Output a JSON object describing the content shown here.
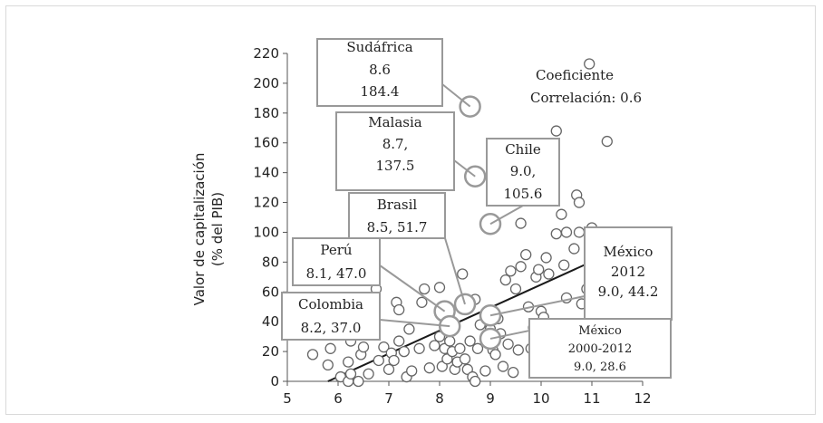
{
  "chart_data": {
    "type": "scatter",
    "ylabel_line1": "Valor de capitalización",
    "ylabel_line2": "(% del PIB)",
    "xlim": [
      5,
      12
    ],
    "ylim": [
      0,
      220
    ],
    "x_ticks": [
      "5",
      "6",
      "7",
      "8",
      "9",
      "10",
      "11",
      "12"
    ],
    "y_ticks": [
      "0",
      "20",
      "40",
      "60",
      "80",
      "100",
      "120",
      "140",
      "160",
      "180",
      "200",
      "220"
    ],
    "trendline": {
      "x": [
        5.8,
        11.3
      ],
      "y": [
        0,
        85
      ]
    },
    "correlation": {
      "line1": "Coeficiente",
      "line2": "Correlación: 0.6"
    },
    "points": [
      {
        "x": 5.5,
        "y": 18
      },
      {
        "x": 5.8,
        "y": 11
      },
      {
        "x": 5.85,
        "y": 22
      },
      {
        "x": 6.05,
        "y": 3
      },
      {
        "x": 6.2,
        "y": 0
      },
      {
        "x": 6.2,
        "y": 13
      },
      {
        "x": 6.25,
        "y": 5
      },
      {
        "x": 6.25,
        "y": 27
      },
      {
        "x": 6.4,
        "y": 0
      },
      {
        "x": 6.45,
        "y": 18
      },
      {
        "x": 6.5,
        "y": 23
      },
      {
        "x": 6.6,
        "y": 5
      },
      {
        "x": 6.7,
        "y": 55
      },
      {
        "x": 6.75,
        "y": 62
      },
      {
        "x": 6.8,
        "y": 14
      },
      {
        "x": 6.9,
        "y": 23
      },
      {
        "x": 7.0,
        "y": 8
      },
      {
        "x": 7.05,
        "y": 19
      },
      {
        "x": 7.1,
        "y": 14
      },
      {
        "x": 7.15,
        "y": 53
      },
      {
        "x": 7.2,
        "y": 48
      },
      {
        "x": 7.2,
        "y": 27
      },
      {
        "x": 7.3,
        "y": 20
      },
      {
        "x": 7.35,
        "y": 3
      },
      {
        "x": 7.45,
        "y": 7
      },
      {
        "x": 7.6,
        "y": 22
      },
      {
        "x": 7.65,
        "y": 53
      },
      {
        "x": 7.7,
        "y": 62
      },
      {
        "x": 7.8,
        "y": 9
      },
      {
        "x": 7.9,
        "y": 24
      },
      {
        "x": 8.0,
        "y": 63
      },
      {
        "x": 8.05,
        "y": 10
      },
      {
        "x": 8.1,
        "y": 22
      },
      {
        "x": 8.15,
        "y": 15
      },
      {
        "x": 8.2,
        "y": 27
      },
      {
        "x": 8.25,
        "y": 20
      },
      {
        "x": 8.3,
        "y": 8
      },
      {
        "x": 8.35,
        "y": 13
      },
      {
        "x": 8.4,
        "y": 22
      },
      {
        "x": 8.45,
        "y": 72
      },
      {
        "x": 8.5,
        "y": 15
      },
      {
        "x": 8.55,
        "y": 8
      },
      {
        "x": 8.6,
        "y": 27
      },
      {
        "x": 8.65,
        "y": 3
      },
      {
        "x": 8.7,
        "y": 0
      },
      {
        "x": 8.7,
        "y": 55
      },
      {
        "x": 8.75,
        "y": 22
      },
      {
        "x": 8.8,
        "y": 38
      },
      {
        "x": 8.9,
        "y": 7
      },
      {
        "x": 9.0,
        "y": 35
      },
      {
        "x": 9.05,
        "y": 21
      },
      {
        "x": 9.1,
        "y": 18
      },
      {
        "x": 9.15,
        "y": 42
      },
      {
        "x": 9.2,
        "y": 32
      },
      {
        "x": 9.3,
        "y": 68
      },
      {
        "x": 9.35,
        "y": 25
      },
      {
        "x": 9.4,
        "y": 74
      },
      {
        "x": 9.45,
        "y": 6
      },
      {
        "x": 9.5,
        "y": 62
      },
      {
        "x": 9.55,
        "y": 21
      },
      {
        "x": 9.6,
        "y": 106
      },
      {
        "x": 9.6,
        "y": 77
      },
      {
        "x": 9.7,
        "y": 85
      },
      {
        "x": 9.75,
        "y": 50
      },
      {
        "x": 9.8,
        "y": 22
      },
      {
        "x": 9.85,
        "y": 36
      },
      {
        "x": 9.9,
        "y": 70
      },
      {
        "x": 9.95,
        "y": 75
      },
      {
        "x": 10.0,
        "y": 47
      },
      {
        "x": 10.05,
        "y": 43
      },
      {
        "x": 10.1,
        "y": 83
      },
      {
        "x": 10.15,
        "y": 72
      },
      {
        "x": 10.2,
        "y": 30
      },
      {
        "x": 10.25,
        "y": 38
      },
      {
        "x": 10.3,
        "y": 99
      },
      {
        "x": 10.3,
        "y": 168
      },
      {
        "x": 10.35,
        "y": 37
      },
      {
        "x": 10.4,
        "y": 112
      },
      {
        "x": 10.45,
        "y": 78
      },
      {
        "x": 10.5,
        "y": 56
      },
      {
        "x": 10.5,
        "y": 100
      },
      {
        "x": 10.55,
        "y": 29
      },
      {
        "x": 10.6,
        "y": 25
      },
      {
        "x": 10.65,
        "y": 89
      },
      {
        "x": 10.7,
        "y": 125
      },
      {
        "x": 10.75,
        "y": 100
      },
      {
        "x": 10.75,
        "y": 120
      },
      {
        "x": 10.9,
        "y": 62
      },
      {
        "x": 10.95,
        "y": 213
      },
      {
        "x": 11.0,
        "y": 103
      },
      {
        "x": 11.0,
        "y": 79
      },
      {
        "x": 11.1,
        "y": 57
      },
      {
        "x": 11.2,
        "y": 43
      },
      {
        "x": 11.3,
        "y": 161
      },
      {
        "x": 6.6,
        "y": 33
      },
      {
        "x": 7.4,
        "y": 35
      },
      {
        "x": 8.0,
        "y": 30
      },
      {
        "x": 9.25,
        "y": 10
      },
      {
        "x": 10.8,
        "y": 52
      }
    ],
    "highlights": [
      {
        "name": "Sudáfrica",
        "x": 8.6,
        "y": 184.4,
        "label_lines": [
          "Sudáfrica",
          "8.6",
          "184.4"
        ]
      },
      {
        "name": "Malasia",
        "x": 8.7,
        "y": 137.5,
        "label_lines": [
          "Malasia",
          "8.7,",
          "137.5"
        ]
      },
      {
        "name": "Chile",
        "x": 9.0,
        "y": 105.6,
        "label_lines": [
          "Chile",
          "9.0,",
          "105.6"
        ]
      },
      {
        "name": "Brasil",
        "x": 8.5,
        "y": 51.7,
        "label_lines": [
          "Brasil",
          "8.5, 51.7"
        ]
      },
      {
        "name": "Perú",
        "x": 8.1,
        "y": 47.0,
        "label_lines": [
          "Perú",
          "8.1, 47.0"
        ]
      },
      {
        "name": "Colombia",
        "x": 8.2,
        "y": 37.0,
        "label_lines": [
          "Colombia",
          "8.2, 37.0"
        ]
      },
      {
        "name": "México 2012",
        "x": 9.0,
        "y": 44.2,
        "label_lines": [
          "México",
          "2012",
          "9.0, 44.2"
        ]
      },
      {
        "name": "México 2000-2012",
        "x": 9.0,
        "y": 28.6,
        "label_lines": [
          "México",
          "2000-2012",
          "9.0, 28.6"
        ]
      }
    ]
  }
}
